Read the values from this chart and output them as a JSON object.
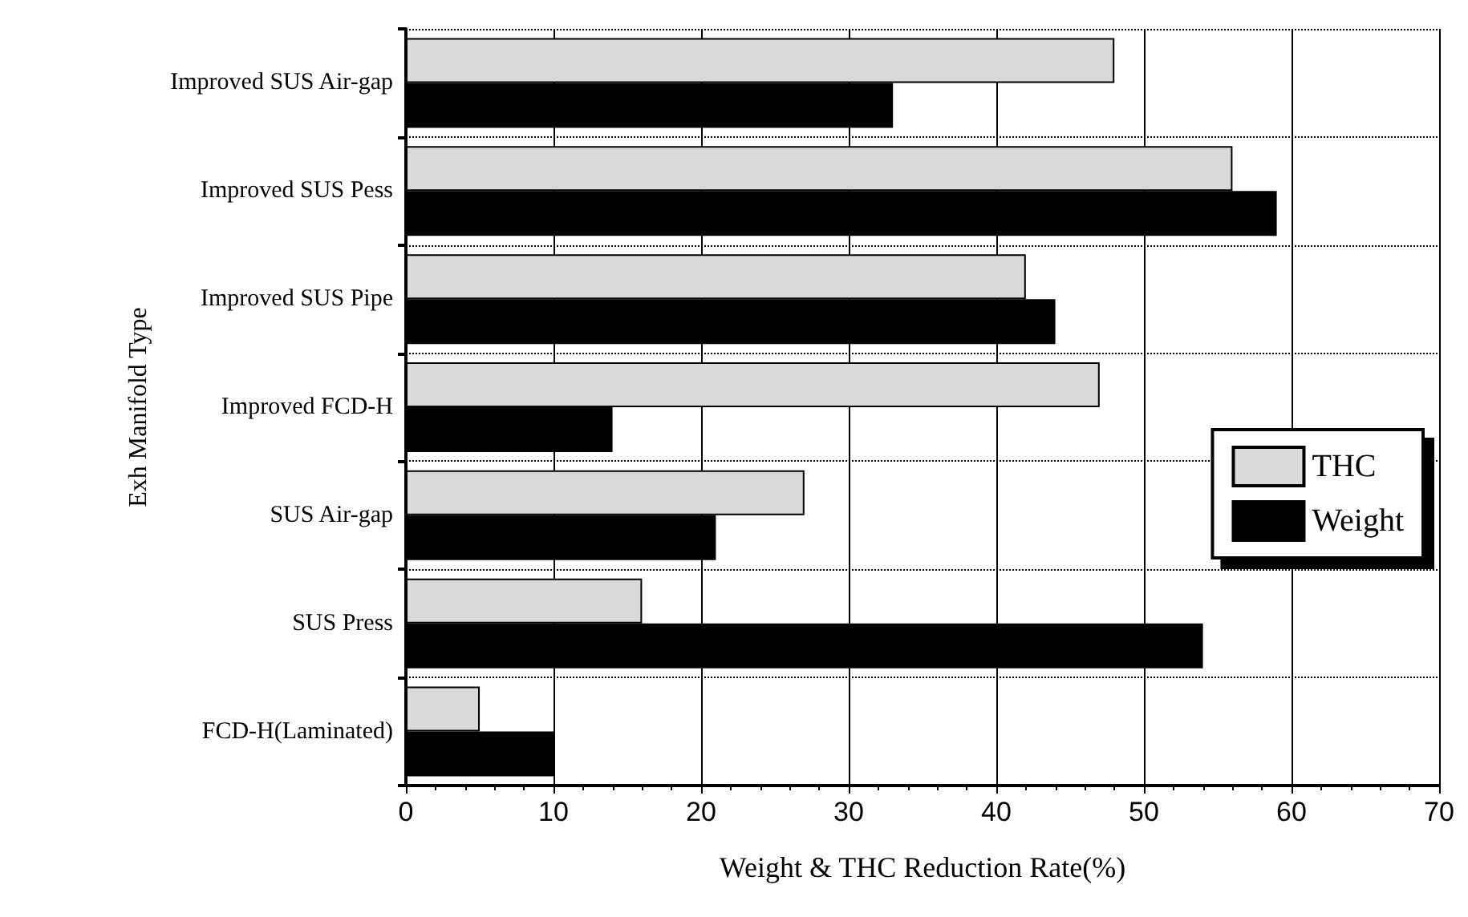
{
  "chart_data": {
    "type": "bar",
    "orientation": "horizontal",
    "xlabel": "Weight & THC Reduction Rate(%)",
    "ylabel": "Exh Manifold Type",
    "categories": [
      "Improved SUS Air-gap",
      "Improved SUS Pess",
      "Improved SUS Pipe",
      "Improved FCD-H",
      "SUS Air-gap",
      "SUS Press",
      "FCD-H(Laminated)"
    ],
    "series": [
      {
        "name": "THC",
        "color": "#d9d9d9",
        "values": [
          48,
          56,
          42,
          47,
          27,
          16,
          5
        ]
      },
      {
        "name": "Weight",
        "color": "#000000",
        "values": [
          33,
          59,
          44,
          14,
          21,
          54,
          10
        ]
      }
    ],
    "xlim": [
      0,
      70
    ],
    "xticks": [
      0,
      10,
      20,
      30,
      40,
      50,
      60,
      70
    ],
    "grid": true,
    "legend": "right"
  }
}
